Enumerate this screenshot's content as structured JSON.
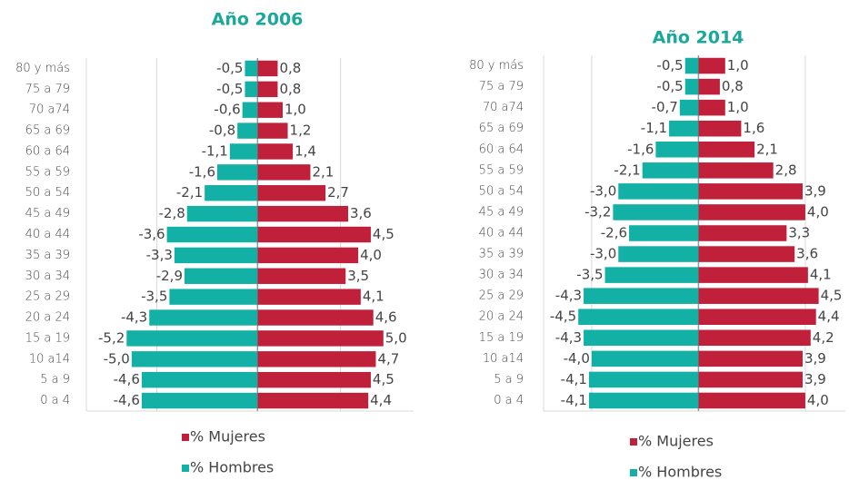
{
  "chart_data": [
    {
      "type": "pyramid",
      "title": "Año 2006",
      "categories": [
        "80 y más",
        "75 a 79",
        "70 a74",
        "65 a 69",
        "60 a 64",
        "55 a 59",
        "50 a 54",
        "45 a 49",
        "40 a 44",
        "35 a 39",
        "30 a 34",
        "25 a 29",
        "20 a 24",
        "15 a 19",
        "10 a14",
        "5 a 9",
        "0 a 4"
      ],
      "series": [
        {
          "name": "% Mujeres",
          "color": "#c0203a",
          "values": [
            0.8,
            0.8,
            1.0,
            1.2,
            1.4,
            2.1,
            2.7,
            3.6,
            4.5,
            4.0,
            3.5,
            4.1,
            4.6,
            5.0,
            4.7,
            4.5,
            4.4
          ],
          "value_labels": [
            "0,8",
            "0,8",
            "1,0",
            "1,2",
            "1,4",
            "2,1",
            "2,7",
            "3,6",
            "4,5",
            "4,0",
            "3,5",
            "4,1",
            "4,6",
            "5,0",
            "4,7",
            "4,5",
            "4,4"
          ]
        },
        {
          "name": "% Hombres",
          "color": "#13b0a5",
          "values": [
            -0.5,
            -0.5,
            -0.6,
            -0.8,
            -1.1,
            -1.6,
            -2.1,
            -2.8,
            -3.6,
            -3.3,
            -2.9,
            -3.5,
            -4.3,
            -5.2,
            -5.0,
            -4.6,
            -4.6
          ],
          "value_labels": [
            "-0,5",
            "-0,5",
            "-0,6",
            "-0,8",
            "-1,1",
            "-1,6",
            "-2,1",
            "-2,8",
            "-3,6",
            "-3,3",
            "-2,9",
            "-3,5",
            "-4,3",
            "-5,2",
            "-5,0",
            "-4,6",
            "-4,6"
          ]
        }
      ],
      "xlim": [
        -6.8,
        6.2
      ],
      "xticks": [
        -4,
        0,
        3.3
      ],
      "grid": true
    },
    {
      "type": "pyramid",
      "title": "Año 2014",
      "categories": [
        "80 y más",
        "75 a 79",
        "70 a74",
        "65 a 69",
        "60 a 64",
        "55 a 59",
        "50 a 54",
        "45 a 49",
        "40 a 44",
        "35 a 39",
        "30 a 34",
        "25 a 29",
        "20 a 24",
        "15 a 19",
        "10 a14",
        "5 a 9",
        "0 a 4"
      ],
      "series": [
        {
          "name": "% Mujeres",
          "color": "#c0203a",
          "values": [
            1.0,
            0.8,
            1.0,
            1.6,
            2.1,
            2.8,
            3.9,
            4.0,
            3.3,
            3.6,
            4.1,
            4.5,
            4.4,
            4.2,
            3.9,
            3.9,
            4.0
          ],
          "value_labels": [
            "1,0",
            "0,8",
            "1,0",
            "1,6",
            "2,1",
            "2,8",
            "3,9",
            "4,0",
            "3,3",
            "3,6",
            "4,1",
            "4,5",
            "4,4",
            "4,2",
            "3,9",
            "3,9",
            "4,0"
          ]
        },
        {
          "name": "% Hombres",
          "color": "#13b0a5",
          "values": [
            -0.5,
            -0.5,
            -0.7,
            -1.1,
            -1.6,
            -2.1,
            -3.0,
            -3.2,
            -2.6,
            -3.0,
            -3.5,
            -4.3,
            -4.5,
            -4.3,
            -4.0,
            -4.1,
            -4.1
          ],
          "value_labels": [
            "-0,5",
            "-0,5",
            "-0,7",
            "-1,1",
            "-1,6",
            "-2,1",
            "-3,0",
            "-3,2",
            "-2,6",
            "-3,0",
            "-3,5",
            "-4,3",
            "-4,5",
            "-4,3",
            "-4,0",
            "-4,1",
            "-4,1"
          ]
        }
      ],
      "xlim": [
        -5.8,
        5.5
      ],
      "xticks": [
        -4,
        0,
        4
      ],
      "grid": true
    }
  ]
}
